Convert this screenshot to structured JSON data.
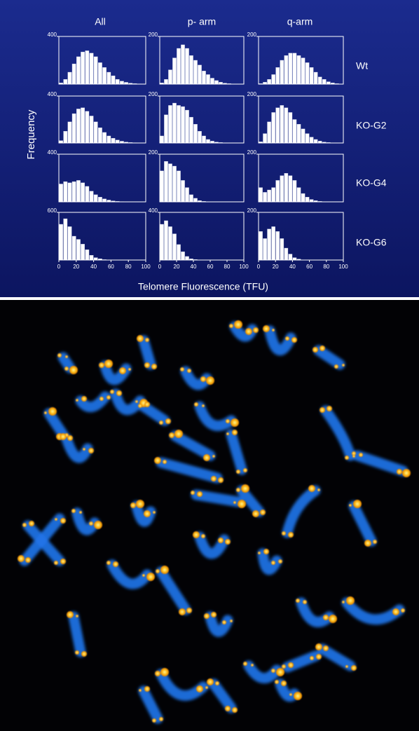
{
  "figure": {
    "column_titles": [
      "All",
      "p- arm",
      "q-arm"
    ],
    "row_labels": [
      "Wt",
      "KO-G2",
      "KO-G4",
      "KO-G6"
    ],
    "ylabel": "Frequency",
    "xlabel": "Telomere Fluorescence (TFU)"
  },
  "chart_data": [
    {
      "type": "histogram",
      "color": "#ffffff",
      "bins": [
        0,
        5,
        10,
        15,
        20,
        25,
        30,
        35,
        40,
        45,
        50,
        55,
        60,
        65,
        70,
        75,
        80,
        85,
        90,
        95,
        100
      ],
      "values": [
        10,
        40,
        100,
        170,
        230,
        270,
        280,
        260,
        230,
        180,
        140,
        100,
        70,
        40,
        25,
        15,
        8,
        4,
        2,
        0
      ],
      "xlim": [
        0,
        100
      ],
      "ylim": [
        0,
        400
      ],
      "yticks": [
        400
      ]
    },
    {
      "type": "histogram",
      "color": "#ffffff",
      "bins": [
        0,
        5,
        10,
        15,
        20,
        25,
        30,
        35,
        40,
        45,
        50,
        55,
        60,
        65,
        70,
        75,
        80,
        85,
        90,
        95,
        100
      ],
      "values": [
        5,
        20,
        60,
        110,
        150,
        165,
        150,
        120,
        100,
        80,
        55,
        40,
        25,
        15,
        8,
        4,
        2,
        0,
        0,
        0
      ],
      "xlim": [
        0,
        100
      ],
      "ylim": [
        0,
        200
      ],
      "yticks": [
        200
      ]
    },
    {
      "type": "histogram",
      "color": "#ffffff",
      "bins": [
        0,
        5,
        10,
        15,
        20,
        25,
        30,
        35,
        40,
        45,
        50,
        55,
        60,
        65,
        70,
        75,
        80,
        85,
        90,
        95,
        100
      ],
      "values": [
        2,
        8,
        20,
        40,
        70,
        100,
        120,
        130,
        130,
        120,
        110,
        90,
        70,
        50,
        30,
        20,
        10,
        5,
        2,
        0
      ],
      "xlim": [
        0,
        100
      ],
      "ylim": [
        0,
        200
      ],
      "yticks": [
        200
      ]
    },
    {
      "type": "histogram",
      "color": "#ffffff",
      "bins": [
        0,
        5,
        10,
        15,
        20,
        25,
        30,
        35,
        40,
        45,
        50,
        55,
        60,
        65,
        70,
        75,
        80,
        85,
        90,
        95,
        100
      ],
      "values": [
        20,
        100,
        180,
        250,
        290,
        300,
        270,
        230,
        180,
        130,
        90,
        60,
        40,
        25,
        15,
        8,
        4,
        2,
        0,
        0
      ],
      "xlim": [
        0,
        100
      ],
      "ylim": [
        0,
        400
      ],
      "yticks": [
        400
      ]
    },
    {
      "type": "histogram",
      "color": "#ffffff",
      "bins": [
        0,
        5,
        10,
        15,
        20,
        25,
        30,
        35,
        40,
        45,
        50,
        55,
        60,
        65,
        70,
        75,
        80,
        85,
        90,
        95,
        100
      ],
      "values": [
        30,
        120,
        160,
        170,
        160,
        155,
        140,
        110,
        80,
        50,
        30,
        15,
        8,
        4,
        2,
        0,
        0,
        0,
        0,
        0
      ],
      "xlim": [
        0,
        100
      ],
      "ylim": [
        0,
        200
      ],
      "yticks": [
        200
      ]
    },
    {
      "type": "histogram",
      "color": "#ffffff",
      "bins": [
        0,
        5,
        10,
        15,
        20,
        25,
        30,
        35,
        40,
        45,
        50,
        55,
        60,
        65,
        70,
        75,
        80,
        85,
        90,
        95,
        100
      ],
      "values": [
        5,
        40,
        90,
        130,
        150,
        160,
        150,
        130,
        100,
        80,
        60,
        40,
        25,
        15,
        8,
        4,
        2,
        0,
        0,
        0
      ],
      "xlim": [
        0,
        100
      ],
      "ylim": [
        0,
        200
      ],
      "yticks": [
        200
      ]
    },
    {
      "type": "histogram",
      "color": "#ffffff",
      "bins": [
        0,
        5,
        10,
        15,
        20,
        25,
        30,
        35,
        40,
        45,
        50,
        55,
        60,
        65,
        70,
        75,
        80,
        85,
        90,
        95,
        100
      ],
      "values": [
        150,
        170,
        160,
        170,
        180,
        160,
        130,
        90,
        60,
        40,
        25,
        15,
        8,
        4,
        2,
        0,
        0,
        0,
        0,
        0
      ],
      "xlim": [
        0,
        100
      ],
      "ylim": [
        0,
        400
      ],
      "yticks": [
        400
      ]
    },
    {
      "type": "histogram",
      "color": "#ffffff",
      "bins": [
        0,
        5,
        10,
        15,
        20,
        25,
        30,
        35,
        40,
        45,
        50,
        55,
        60,
        65,
        70,
        75,
        80,
        85,
        90,
        95,
        100
      ],
      "values": [
        130,
        170,
        160,
        150,
        130,
        90,
        60,
        30,
        15,
        5,
        2,
        0,
        0,
        0,
        0,
        0,
        0,
        0,
        0,
        0
      ],
      "xlim": [
        0,
        100
      ],
      "ylim": [
        0,
        200
      ],
      "yticks": [
        200
      ]
    },
    {
      "type": "histogram",
      "color": "#ffffff",
      "bins": [
        0,
        5,
        10,
        15,
        20,
        25,
        30,
        35,
        40,
        45,
        50,
        55,
        60,
        65,
        70,
        75,
        80,
        85,
        90,
        95,
        100
      ],
      "values": [
        60,
        40,
        50,
        60,
        90,
        110,
        120,
        110,
        90,
        60,
        35,
        20,
        10,
        5,
        2,
        0,
        0,
        0,
        0,
        0
      ],
      "xlim": [
        0,
        100
      ],
      "ylim": [
        0,
        200
      ],
      "yticks": [
        200
      ]
    },
    {
      "type": "histogram",
      "color": "#ffffff",
      "bins": [
        0,
        5,
        10,
        15,
        20,
        25,
        30,
        35,
        40,
        45,
        50,
        55,
        60,
        65,
        70,
        75,
        80,
        85,
        90,
        95,
        100
      ],
      "values": [
        450,
        520,
        420,
        300,
        260,
        200,
        130,
        60,
        30,
        15,
        5,
        2,
        0,
        0,
        0,
        0,
        0,
        0,
        0,
        0
      ],
      "xlim": [
        0,
        100
      ],
      "ylim": [
        0,
        600
      ],
      "yticks": [
        600
      ],
      "xticks": [
        0,
        20,
        40,
        60,
        80,
        100
      ]
    },
    {
      "type": "histogram",
      "color": "#ffffff",
      "bins": [
        0,
        5,
        10,
        15,
        20,
        25,
        30,
        35,
        40,
        45,
        50,
        55,
        60,
        65,
        70,
        75,
        80,
        85,
        90,
        95,
        100
      ],
      "values": [
        300,
        330,
        280,
        220,
        130,
        70,
        30,
        10,
        4,
        0,
        0,
        0,
        0,
        0,
        0,
        0,
        0,
        0,
        0,
        0
      ],
      "xlim": [
        0,
        100
      ],
      "ylim": [
        0,
        400
      ],
      "yticks": [
        400
      ],
      "xticks": [
        0,
        20,
        40,
        60,
        80,
        100
      ]
    },
    {
      "type": "histogram",
      "color": "#ffffff",
      "bins": [
        0,
        5,
        10,
        15,
        20,
        25,
        30,
        35,
        40,
        45,
        50,
        55,
        60,
        65,
        70,
        75,
        80,
        85,
        90,
        95,
        100
      ],
      "values": [
        120,
        90,
        130,
        140,
        120,
        90,
        50,
        25,
        10,
        4,
        0,
        0,
        0,
        0,
        0,
        0,
        0,
        0,
        0,
        0
      ],
      "xlim": [
        0,
        100
      ],
      "ylim": [
        0,
        200
      ],
      "yticks": [
        200
      ],
      "xticks": [
        0,
        20,
        40,
        60,
        80,
        100
      ]
    }
  ]
}
